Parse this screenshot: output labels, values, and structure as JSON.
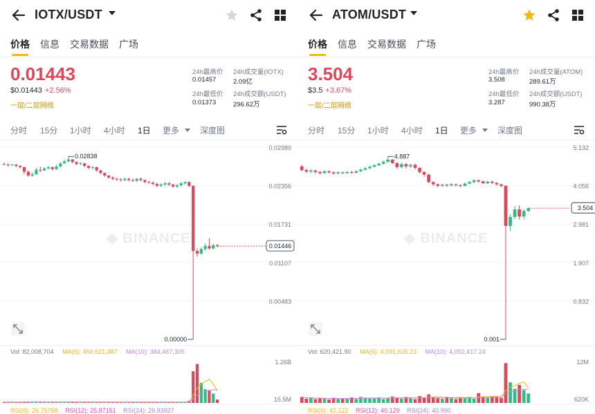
{
  "panels": [
    {
      "pair": "IOTX/USDT",
      "favorite": false,
      "tabs": [
        "价格",
        "信息",
        "交易数据",
        "广场"
      ],
      "price": "0.01443",
      "usd_price": "$0.01443",
      "change": "+2.56%",
      "network": "一层/二层网络",
      "stats": {
        "high_label": "24h最高价",
        "high": "0.01457",
        "vol_label": "24h成交量(IOTX)",
        "vol": "2.09亿",
        "low_label": "24h最低价",
        "low": "0.01373",
        "turnover_label": "24h成交额(USDT)",
        "turnover": "296.62万"
      },
      "intervals": [
        "分时",
        "15分",
        "1小时",
        "4小时",
        "1日",
        "更多",
        "深度图"
      ],
      "active_interval": "1日",
      "watermark": "BINANCE",
      "chart_data": {
        "type": "candlestick",
        "y_ticks": [
          "0.02980",
          "0.02356",
          "0.01731",
          "0.01107",
          "0.00483"
        ],
        "ylim": [
          0,
          0.0298
        ],
        "high_marker": "0.02838",
        "low_marker": "0.00000",
        "last_price_label": "0.01446",
        "last_price": 0.01446,
        "candles": [
          [
            0.0272,
            0.0271,
            0.0274,
            0.027
          ],
          [
            0.0271,
            0.027,
            0.0273,
            0.0268
          ],
          [
            0.027,
            0.0271,
            0.0272,
            0.0269
          ],
          [
            0.0271,
            0.0269,
            0.0272,
            0.0267
          ],
          [
            0.0269,
            0.0267,
            0.027,
            0.0265
          ],
          [
            0.0267,
            0.026,
            0.0268,
            0.0256
          ],
          [
            0.026,
            0.0254,
            0.0262,
            0.0252
          ],
          [
            0.0254,
            0.0256,
            0.0259,
            0.0252
          ],
          [
            0.0256,
            0.0263,
            0.0266,
            0.0255
          ],
          [
            0.0263,
            0.0262,
            0.0268,
            0.0259
          ],
          [
            0.0262,
            0.0265,
            0.0267,
            0.0261
          ],
          [
            0.0265,
            0.0267,
            0.0269,
            0.0264
          ],
          [
            0.0267,
            0.0264,
            0.0268,
            0.0262
          ],
          [
            0.0264,
            0.0268,
            0.0271,
            0.0263
          ],
          [
            0.0268,
            0.0273,
            0.0275,
            0.0267
          ],
          [
            0.0273,
            0.0276,
            0.0279,
            0.0272
          ],
          [
            0.0276,
            0.0279,
            0.02838,
            0.0275
          ],
          [
            0.0279,
            0.0275,
            0.028,
            0.0273
          ],
          [
            0.0275,
            0.0272,
            0.0276,
            0.027
          ],
          [
            0.0272,
            0.0273,
            0.0275,
            0.027
          ],
          [
            0.0273,
            0.0269,
            0.0274,
            0.0267
          ],
          [
            0.0269,
            0.0266,
            0.027,
            0.0264
          ],
          [
            0.0266,
            0.0267,
            0.0269,
            0.0264
          ],
          [
            0.0267,
            0.0262,
            0.0268,
            0.026
          ],
          [
            0.0262,
            0.0258,
            0.0263,
            0.0256
          ],
          [
            0.0258,
            0.0254,
            0.0259,
            0.0252
          ],
          [
            0.0254,
            0.0251,
            0.0255,
            0.0249
          ],
          [
            0.0251,
            0.0249,
            0.0253,
            0.0247
          ],
          [
            0.0249,
            0.0248,
            0.0251,
            0.0246
          ],
          [
            0.0248,
            0.0247,
            0.025,
            0.0245
          ],
          [
            0.0247,
            0.0249,
            0.0251,
            0.0245
          ],
          [
            0.0249,
            0.0247,
            0.0251,
            0.0245
          ],
          [
            0.0247,
            0.0246,
            0.0249,
            0.0244
          ],
          [
            0.0246,
            0.0249,
            0.025,
            0.0244
          ],
          [
            0.0249,
            0.0247,
            0.0251,
            0.0245
          ],
          [
            0.0247,
            0.0244,
            0.0248,
            0.0242
          ],
          [
            0.0244,
            0.0243,
            0.0246,
            0.0241
          ],
          [
            0.0243,
            0.0241,
            0.0245,
            0.0239
          ],
          [
            0.0241,
            0.0238,
            0.0243,
            0.0236
          ],
          [
            0.0238,
            0.024,
            0.0242,
            0.0236
          ],
          [
            0.024,
            0.0242,
            0.0244,
            0.0238
          ],
          [
            0.0242,
            0.024,
            0.0244,
            0.0238
          ],
          [
            0.024,
            0.0237,
            0.0241,
            0.0235
          ],
          [
            0.0237,
            0.0239,
            0.0241,
            0.0235
          ],
          [
            0.0239,
            0.0242,
            0.0244,
            0.0237
          ],
          [
            0.0242,
            0.0244,
            0.0245,
            0.024
          ],
          [
            0.0244,
            0.0238,
            0.0245,
            0.0236
          ],
          [
            0.0238,
            0.0137,
            0.0239,
            0.0
          ],
          [
            0.0137,
            0.0133,
            0.0141,
            0.0128
          ],
          [
            0.0133,
            0.014,
            0.0143,
            0.0131
          ],
          [
            0.014,
            0.0145,
            0.0149,
            0.0137
          ],
          [
            0.0145,
            0.0141,
            0.0157,
            0.0139
          ],
          [
            0.0141,
            0.0146,
            0.0148,
            0.0139
          ],
          [
            0.0146,
            0.01446,
            0.0148,
            0.0143
          ]
        ],
        "indicator": {
          "vol": "Vol: 82,008,704",
          "ma5": "MA(5): 450,621,487",
          "ma10": "MA(10): 384,487,305"
        },
        "vol_ticks": [
          "1.26B",
          "15.5M"
        ],
        "volumes": [
          0.02,
          0.02,
          0.02,
          0.02,
          0.02,
          0.03,
          0.03,
          0.02,
          0.03,
          0.02,
          0.02,
          0.02,
          0.02,
          0.02,
          0.03,
          0.02,
          0.03,
          0.02,
          0.02,
          0.02,
          0.02,
          0.02,
          0.02,
          0.02,
          0.02,
          0.02,
          0.02,
          0.02,
          0.02,
          0.02,
          0.02,
          0.02,
          0.02,
          0.02,
          0.02,
          0.02,
          0.02,
          0.02,
          0.02,
          0.02,
          0.02,
          0.02,
          0.02,
          0.02,
          0.02,
          0.02,
          0.05,
          0.74,
          0.91,
          0.47,
          0.32,
          0.3,
          0.22,
          0.08
        ],
        "rsi": {
          "rsi6": "RSI(6): 26.75768",
          "rsi12": "RSI(12): 25.87151",
          "rsi24": "RSI(24): 29.93927"
        }
      }
    },
    {
      "pair": "ATOM/USDT",
      "favorite": true,
      "tabs": [
        "价格",
        "信息",
        "交易数据",
        "广场"
      ],
      "price": "3.504",
      "usd_price": "$3.5",
      "change": "+3.67%",
      "network": "一层/二层网络",
      "stats": {
        "high_label": "24h最高价",
        "high": "3.508",
        "vol_label": "24h成交量(ATOM)",
        "vol": "289.61万",
        "low_label": "24h最低价",
        "low": "3.287",
        "turnover_label": "24h成交额(USDT)",
        "turnover": "990.38万"
      },
      "intervals": [
        "分时",
        "15分",
        "1小时",
        "4小时",
        "1日",
        "更多",
        "深度图"
      ],
      "active_interval": "1日",
      "watermark": "BINANCE",
      "chart_data": {
        "type": "candlestick",
        "y_ticks": [
          "5.132",
          "4.056",
          "2.981",
          "1.907",
          "0.832"
        ],
        "ylim": [
          0,
          5.132
        ],
        "high_marker": "4.887",
        "low_marker": "0.001",
        "last_price_label": "3.504",
        "last_price": 3.504,
        "candles": [
          [
            4.62,
            4.52,
            4.66,
            4.48
          ],
          [
            4.52,
            4.48,
            4.56,
            4.44
          ],
          [
            4.48,
            4.51,
            4.55,
            4.45
          ],
          [
            4.51,
            4.47,
            4.53,
            4.43
          ],
          [
            4.47,
            4.44,
            4.5,
            4.4
          ],
          [
            4.44,
            4.49,
            4.52,
            4.42
          ],
          [
            4.49,
            4.46,
            4.52,
            4.43
          ],
          [
            4.46,
            4.43,
            4.49,
            4.4
          ],
          [
            4.43,
            4.46,
            4.49,
            4.41
          ],
          [
            4.46,
            4.44,
            4.48,
            4.41
          ],
          [
            4.44,
            4.47,
            4.5,
            4.42
          ],
          [
            4.47,
            4.45,
            4.5,
            4.42
          ],
          [
            4.45,
            4.49,
            4.52,
            4.43
          ],
          [
            4.49,
            4.53,
            4.56,
            4.47
          ],
          [
            4.53,
            4.57,
            4.6,
            4.51
          ],
          [
            4.57,
            4.61,
            4.64,
            4.55
          ],
          [
            4.61,
            4.65,
            4.68,
            4.59
          ],
          [
            4.65,
            4.69,
            4.72,
            4.63
          ],
          [
            4.69,
            4.74,
            4.78,
            4.67
          ],
          [
            4.74,
            4.8,
            4.887,
            4.72
          ],
          [
            4.8,
            4.71,
            4.82,
            4.68
          ],
          [
            4.71,
            4.6,
            4.73,
            4.55
          ],
          [
            4.6,
            4.68,
            4.72,
            4.57
          ],
          [
            4.68,
            4.62,
            4.71,
            4.56
          ],
          [
            4.62,
            4.66,
            4.69,
            4.58
          ],
          [
            4.66,
            4.58,
            4.7,
            4.54
          ],
          [
            4.58,
            4.47,
            4.6,
            4.43
          ],
          [
            4.47,
            4.4,
            4.49,
            4.34
          ],
          [
            4.4,
            4.2,
            4.42,
            4.17
          ],
          [
            4.2,
            4.14,
            4.23,
            4.1
          ],
          [
            4.14,
            4.1,
            4.16,
            4.06
          ],
          [
            4.1,
            4.13,
            4.16,
            4.08
          ],
          [
            4.13,
            4.11,
            4.15,
            4.07
          ],
          [
            4.11,
            4.14,
            4.17,
            4.09
          ],
          [
            4.14,
            4.12,
            4.16,
            4.08
          ],
          [
            4.12,
            4.1,
            4.14,
            4.06
          ],
          [
            4.1,
            4.16,
            4.19,
            4.08
          ],
          [
            4.16,
            4.2,
            4.23,
            4.14
          ],
          [
            4.2,
            4.25,
            4.28,
            4.17
          ],
          [
            4.25,
            4.22,
            4.27,
            4.18
          ],
          [
            4.22,
            4.17,
            4.24,
            4.15
          ],
          [
            4.17,
            4.21,
            4.24,
            4.15
          ],
          [
            4.21,
            4.18,
            4.24,
            4.15
          ],
          [
            4.18,
            4.14,
            4.2,
            4.1
          ],
          [
            4.14,
            4.1,
            4.15,
            4.06
          ],
          [
            4.1,
            3.03,
            4.12,
            0.001
          ],
          [
            3.03,
            3.27,
            3.34,
            2.9
          ],
          [
            3.27,
            3.47,
            3.56,
            3.2
          ],
          [
            3.47,
            3.28,
            3.58,
            3.2
          ],
          [
            3.28,
            3.43,
            3.48,
            3.2
          ],
          [
            3.43,
            3.504,
            3.52,
            3.4
          ]
        ],
        "indicator": {
          "vol": "Vol: 620,421.90",
          "ma5": "MA(5): 4,091,615.23",
          "ma10": "MA(10): 4,092,417.24"
        },
        "vol_ticks": [
          "12M",
          "620K"
        ],
        "volumes": [
          0.14,
          0.1,
          0.12,
          0.09,
          0.11,
          0.1,
          0.08,
          0.12,
          0.09,
          0.11,
          0.1,
          0.13,
          0.09,
          0.14,
          0.12,
          0.1,
          0.11,
          0.13,
          0.09,
          0.12,
          0.15,
          0.12,
          0.1,
          0.14,
          0.11,
          0.09,
          0.16,
          0.12,
          0.2,
          0.13,
          0.11,
          0.1,
          0.14,
          0.12,
          0.09,
          0.13,
          0.11,
          0.14,
          0.1,
          0.23,
          0.15,
          0.12,
          0.16,
          0.14,
          0.12,
          0.93,
          0.48,
          0.33,
          0.42,
          0.3,
          0.22
        ],
        "rsi": {
          "rsi6": "RSI(6): 42.122",
          "rsi12": "RSI(12): 40.129",
          "rsi24": "RSI(24): 40.990"
        }
      }
    }
  ],
  "colors": {
    "up": "#2ebd85",
    "down": "#e0465a",
    "accent": "#f0b90b",
    "ma5": "#f0b90b",
    "ma10": "#c686e8",
    "rsi6": "#f0b90b",
    "rsi12": "#d64bb0",
    "rsi24": "#a283e5"
  },
  "icons": [
    "back-arrow-icon",
    "caret-down-icon",
    "star-icon",
    "share-icon",
    "grid-icon",
    "chart-settings-icon",
    "fullscreen-icon"
  ]
}
